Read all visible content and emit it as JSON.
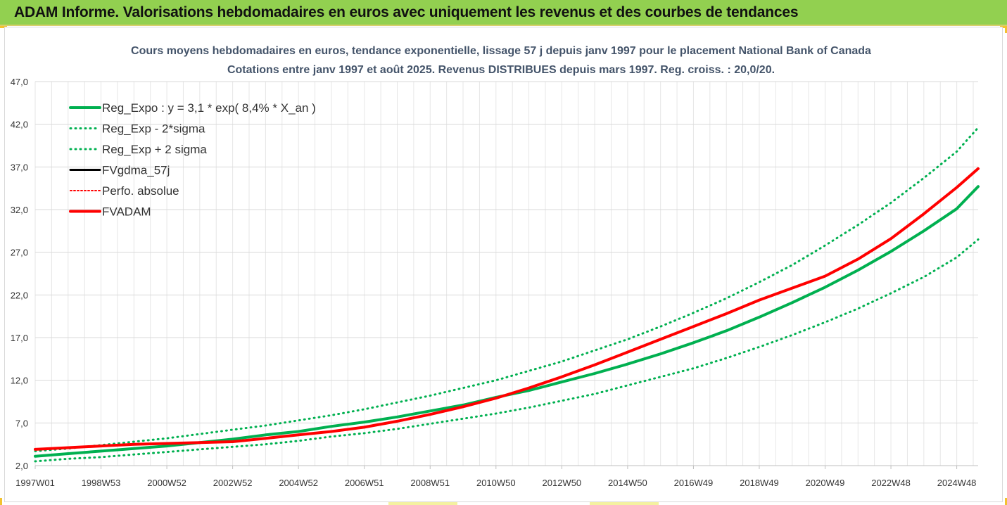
{
  "banner": {
    "title": "ADAM Informe. Valorisations hebdomadaires en euros avec uniquement les revenus et des courbes de tendances",
    "background": "#92d050"
  },
  "chart_data": {
    "type": "line",
    "title": "Cours moyens hebdomadaires en euros, tendance exponentielle, lissage 57 j depuis janv 1997 pour le placement National Bank of Canada",
    "subtitle": "Cotations entre janv 1997 et août 2025. Revenus DISTRIBUES depuis mars 1997. Reg. croiss. : 20,0/20.",
    "xlabel": "",
    "ylabel": "",
    "ylim": [
      2.0,
      47.0
    ],
    "y_ticks": [
      "2,0",
      "7,0",
      "12,0",
      "17,0",
      "22,0",
      "27,0",
      "32,0",
      "37,0",
      "42,0",
      "47,0"
    ],
    "x_ticks": [
      "1997W01",
      "1998W53",
      "2000W52",
      "2002W52",
      "2004W52",
      "2006W51",
      "2008W51",
      "2010W50",
      "2012W50",
      "2014W50",
      "2016W49",
      "2018W49",
      "2020W49",
      "2022W48",
      "2024W48"
    ],
    "x_tick_years": [
      1997.0,
      1999.0,
      2001.0,
      2003.0,
      2005.0,
      2007.0,
      2009.0,
      2011.0,
      2013.0,
      2015.0,
      2017.0,
      2019.0,
      2021.0,
      2023.0,
      2025.0
    ],
    "xlim": [
      1997.0,
      2025.65
    ],
    "grid": true,
    "legend_position": "top-left",
    "x": [
      1997.0,
      1998.0,
      1999.0,
      2000.0,
      2001.0,
      2002.0,
      2003.0,
      2004.0,
      2005.0,
      2006.0,
      2007.0,
      2008.0,
      2009.0,
      2010.0,
      2011.0,
      2012.0,
      2013.0,
      2014.0,
      2015.0,
      2016.0,
      2017.0,
      2018.0,
      2019.0,
      2020.0,
      2021.0,
      2022.0,
      2023.0,
      2024.0,
      2025.0,
      2025.65
    ],
    "series": [
      {
        "name": "Reg_Expo : y = 3,1 * exp( 8,4% *  X_an )",
        "color": "#00b050",
        "style": "solid",
        "width": 4,
        "values": [
          3.1,
          3.4,
          3.7,
          4.0,
          4.3,
          4.7,
          5.1,
          5.6,
          6.0,
          6.6,
          7.1,
          7.7,
          8.4,
          9.1,
          10.0,
          10.8,
          11.8,
          12.8,
          13.9,
          15.1,
          16.4,
          17.8,
          19.4,
          21.1,
          22.9,
          24.9,
          27.1,
          29.5,
          32.1,
          34.7
        ]
      },
      {
        "name": "Reg_Exp - 2*sigma",
        "color": "#00b050",
        "style": "dotted",
        "width": 3,
        "values": [
          2.5,
          2.8,
          3.0,
          3.3,
          3.6,
          3.9,
          4.2,
          4.5,
          4.9,
          5.4,
          5.8,
          6.3,
          6.9,
          7.5,
          8.1,
          8.8,
          9.6,
          10.4,
          11.4,
          12.4,
          13.4,
          14.6,
          15.9,
          17.3,
          18.8,
          20.4,
          22.2,
          24.1,
          26.4,
          28.5
        ]
      },
      {
        "name": "Reg_Exp + 2 sigma",
        "color": "#00b050",
        "style": "dotted",
        "width": 3,
        "values": [
          3.7,
          4.0,
          4.4,
          4.8,
          5.2,
          5.7,
          6.2,
          6.7,
          7.3,
          7.9,
          8.6,
          9.4,
          10.2,
          11.1,
          12.0,
          13.1,
          14.2,
          15.5,
          16.8,
          18.3,
          19.9,
          21.6,
          23.5,
          25.5,
          27.8,
          30.2,
          32.8,
          35.7,
          38.8,
          41.6
        ]
      },
      {
        "name": "FVgdma_57j",
        "color": "#000000",
        "style": "solid",
        "width": 3,
        "values": [
          3.9,
          4.1,
          4.3,
          4.5,
          4.6,
          4.7,
          4.8,
          5.2,
          5.6,
          6.0,
          6.5,
          7.2,
          8.0,
          8.9,
          9.9,
          11.1,
          12.4,
          13.8,
          15.3,
          16.8,
          18.3,
          19.8,
          21.4,
          22.8,
          24.2,
          26.2,
          28.6,
          31.5,
          34.6,
          36.8
        ]
      },
      {
        "name": "Perfo. absolue",
        "color": "#ff0000",
        "style": "dotted",
        "width": 2,
        "values": [
          3.9,
          4.1,
          4.3,
          4.5,
          4.6,
          4.7,
          4.8,
          5.2,
          5.6,
          6.0,
          6.5,
          7.2,
          8.0,
          8.9,
          9.9,
          11.1,
          12.4,
          13.8,
          15.3,
          16.8,
          18.3,
          19.8,
          21.4,
          22.8,
          24.2,
          26.2,
          28.6,
          31.5,
          34.6,
          36.8
        ]
      },
      {
        "name": "FVADAM",
        "color": "#ff0000",
        "style": "solid",
        "width": 4,
        "values": [
          3.9,
          4.1,
          4.3,
          4.5,
          4.6,
          4.7,
          4.8,
          5.2,
          5.6,
          6.0,
          6.5,
          7.2,
          8.0,
          8.9,
          9.9,
          11.1,
          12.4,
          13.8,
          15.3,
          16.8,
          18.3,
          19.8,
          21.4,
          22.8,
          24.2,
          26.2,
          28.6,
          31.5,
          34.6,
          36.8
        ]
      }
    ]
  }
}
